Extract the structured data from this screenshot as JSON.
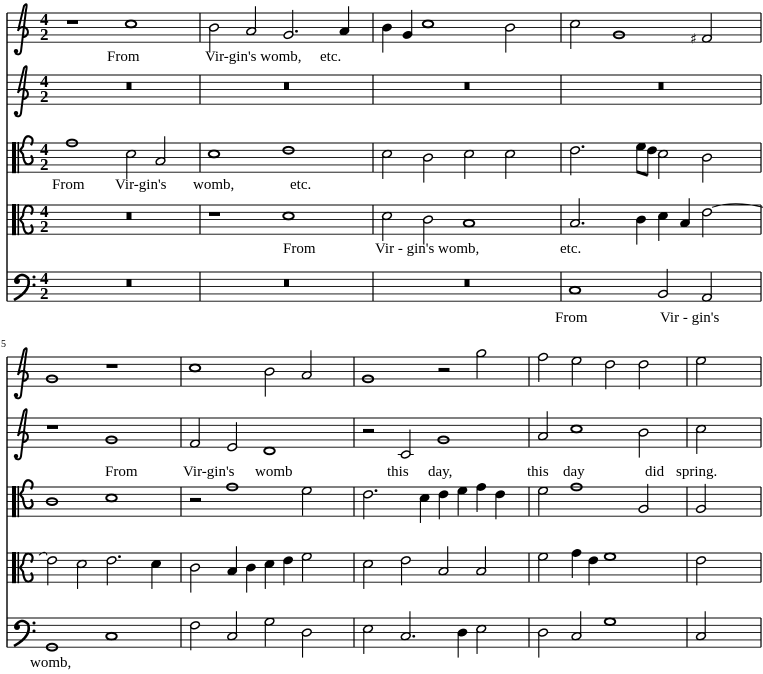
{
  "score": {
    "time_signature": {
      "numerator": "4",
      "denominator": "2"
    },
    "measure_number": "5",
    "colors": {
      "ink": "#000000",
      "paper": "#ffffff"
    },
    "systems": [
      {
        "staves": [
          {
            "clef": "treble",
            "measures": [
              [
                {
                  "r": "1"
                },
                {
                  "p": "C5",
                  "d": "1"
                }
              ],
              [
                {
                  "p": "B4",
                  "d": "2"
                },
                {
                  "p": "A4",
                  "d": "2"
                },
                {
                  "p": "G4",
                  "d": "2."
                },
                {
                  "p": "A4",
                  "d": "4"
                }
              ],
              [
                {
                  "p": "B4",
                  "d": "4"
                },
                {
                  "p": "G4",
                  "d": "4"
                },
                {
                  "p": "C5",
                  "d": "1"
                },
                {
                  "p": "B4",
                  "d": "2"
                }
              ],
              [
                {
                  "p": "C5",
                  "d": "2"
                },
                {
                  "p": "G4",
                  "d": "1"
                },
                {
                  "p": "F4",
                  "d": "2",
                  "acc": "#"
                }
              ]
            ]
          },
          {
            "clef": "treble",
            "measures": [
              [
                {
                  "r": "B"
                }
              ],
              [
                {
                  "r": "B"
                }
              ],
              [
                {
                  "r": "B"
                }
              ],
              [
                {
                  "r": "B"
                }
              ]
            ]
          },
          {
            "clef": "tenor",
            "measures": [
              [
                {
                  "p": "E4",
                  "d": "1"
                },
                {
                  "p": "B3",
                  "d": "2"
                },
                {
                  "p": "G3",
                  "d": "2"
                }
              ],
              [
                {
                  "p": "B3",
                  "d": "1"
                },
                {
                  "p": "C4",
                  "d": "1"
                }
              ],
              [
                {
                  "p": "B3",
                  "d": "2"
                },
                {
                  "p": "A3",
                  "d": "2"
                },
                {
                  "p": "B3",
                  "d": "2"
                },
                {
                  "p": "B3",
                  "d": "2"
                }
              ],
              [
                {
                  "p": "C4",
                  "d": "2."
                },
                {
                  "p": "D4",
                  "d": "8"
                },
                {
                  "p": "C4",
                  "d": "8"
                },
                {
                  "p": "B3",
                  "d": "2"
                },
                {
                  "p": "A3",
                  "d": "2"
                }
              ]
            ]
          },
          {
            "clef": "alto",
            "measures": [
              [
                {
                  "r": "B"
                }
              ],
              [
                {
                  "r": "1"
                },
                {
                  "p": "D4",
                  "d": "1"
                }
              ],
              [
                {
                  "p": "D4",
                  "d": "2"
                },
                {
                  "p": "C4",
                  "d": "2"
                },
                {
                  "p": "B3",
                  "d": "1"
                }
              ],
              [
                {
                  "p": "B3",
                  "d": "2."
                },
                {
                  "p": "C4",
                  "d": "4"
                },
                {
                  "p": "D4",
                  "d": "4"
                },
                {
                  "p": "B3",
                  "d": "4"
                },
                {
                  "p": "E4",
                  "d": "2",
                  "tie": true
                }
              ]
            ]
          },
          {
            "clef": "bass",
            "measures": [
              [
                {
                  "r": "B"
                }
              ],
              [
                {
                  "r": "B"
                }
              ],
              [
                {
                  "r": "B"
                }
              ],
              [
                {
                  "p": "C3",
                  "d": "1"
                },
                {
                  "p": "B2",
                  "d": "2"
                },
                {
                  "p": "A2",
                  "d": "2"
                }
              ]
            ]
          }
        ]
      },
      {
        "staves": [
          {
            "clef": "treble",
            "measures": [
              [
                {
                  "p": "G4",
                  "d": "1"
                },
                {
                  "r": "1"
                }
              ],
              [
                {
                  "p": "C5",
                  "d": "1"
                },
                {
                  "p": "B4",
                  "d": "2"
                },
                {
                  "p": "A4",
                  "d": "2"
                }
              ],
              [
                {
                  "p": "G4",
                  "d": "1"
                },
                {
                  "r": "2"
                },
                {
                  "p": "G5",
                  "d": "2"
                }
              ],
              [
                {
                  "p": "F5",
                  "d": "2"
                },
                {
                  "p": "E5",
                  "d": "2"
                },
                {
                  "p": "D5",
                  "d": "2"
                },
                {
                  "p": "D5",
                  "d": "2"
                }
              ],
              [
                {
                  "p": "E5",
                  "d": "2"
                }
              ]
            ]
          },
          {
            "clef": "treble",
            "measures": [
              [
                {
                  "r": "1"
                },
                {
                  "p": "G4",
                  "d": "1"
                }
              ],
              [
                {
                  "p": "F4",
                  "d": "2"
                },
                {
                  "p": "E4",
                  "d": "2"
                },
                {
                  "p": "D4",
                  "d": "1"
                }
              ],
              [
                {
                  "r": "2"
                },
                {
                  "p": "C4",
                  "d": "2"
                },
                {
                  "p": "G4",
                  "d": "1"
                }
              ],
              [
                {
                  "p": "A4",
                  "d": "2"
                },
                {
                  "p": "C5",
                  "d": "1"
                },
                {
                  "p": "B4",
                  "d": "2"
                }
              ],
              [
                {
                  "p": "C5",
                  "d": "2"
                }
              ]
            ]
          },
          {
            "clef": "tenor",
            "measures": [
              [
                {
                  "p": "A3",
                  "d": "1"
                },
                {
                  "p": "B3",
                  "d": "1"
                }
              ],
              [
                {
                  "r": "2"
                },
                {
                  "p": "E4",
                  "d": "1"
                },
                {
                  "p": "D4",
                  "d": "2"
                }
              ],
              [
                {
                  "p": "C4",
                  "d": "2."
                },
                {
                  "p": "B3",
                  "d": "4"
                },
                {
                  "p": "C4",
                  "d": "4"
                },
                {
                  "p": "D4",
                  "d": "4"
                },
                {
                  "p": "E4",
                  "d": "4"
                },
                {
                  "p": "C4",
                  "d": "4"
                }
              ],
              [
                {
                  "p": "D4",
                  "d": "2"
                },
                {
                  "p": "E4",
                  "d": "1"
                },
                {
                  "p": "F3",
                  "d": "2"
                }
              ],
              [
                {
                  "p": "F3",
                  "d": "2"
                }
              ]
            ]
          },
          {
            "clef": "alto",
            "measures": [
              [
                {
                  "p": "E4",
                  "d": "2",
                  "tie_from": true
                },
                {
                  "p": "D4",
                  "d": "2"
                },
                {
                  "p": "E4",
                  "d": "2."
                },
                {
                  "p": "D4",
                  "d": "4"
                }
              ],
              [
                {
                  "p": "C4",
                  "d": "2"
                },
                {
                  "p": "B3",
                  "d": "4"
                },
                {
                  "p": "C4",
                  "d": "4"
                },
                {
                  "p": "D4",
                  "d": "4"
                },
                {
                  "p": "E4",
                  "d": "4"
                },
                {
                  "p": "F4",
                  "d": "2"
                }
              ],
              [
                {
                  "p": "D4",
                  "d": "2"
                },
                {
                  "p": "E4",
                  "d": "2"
                },
                {
                  "p": "B3",
                  "d": "2"
                },
                {
                  "p": "B3",
                  "d": "2"
                }
              ],
              [
                {
                  "p": "F4",
                  "d": "2"
                },
                {
                  "p": "G4",
                  "d": "4"
                },
                {
                  "p": "E4",
                  "d": "4"
                },
                {
                  "p": "F4",
                  "d": "1"
                }
              ],
              [
                {
                  "p": "E4",
                  "d": "2"
                }
              ]
            ]
          },
          {
            "clef": "bass",
            "measures": [
              [
                {
                  "p": "G2",
                  "d": "1"
                },
                {
                  "p": "C3",
                  "d": "1"
                }
              ],
              [
                {
                  "p": "F3",
                  "d": "2"
                },
                {
                  "p": "C3",
                  "d": "2"
                },
                {
                  "p": "G3",
                  "d": "2"
                },
                {
                  "p": "D3",
                  "d": "2"
                }
              ],
              [
                {
                  "p": "E3",
                  "d": "2"
                },
                {
                  "p": "C3",
                  "d": "2."
                },
                {
                  "p": "D3",
                  "d": "4"
                },
                {
                  "p": "E3",
                  "d": "2"
                }
              ],
              [
                {
                  "p": "D3",
                  "d": "2"
                },
                {
                  "p": "C3",
                  "d": "2"
                },
                {
                  "p": "G3",
                  "d": "1"
                }
              ],
              [
                {
                  "p": "C3",
                  "d": "2"
                }
              ]
            ]
          }
        ]
      }
    ]
  },
  "lyrics": {
    "system1_staff1": [
      "From",
      "Vir-gin's womb,",
      "etc."
    ],
    "system1_staff3": [
      "From",
      "Vir-gin's",
      "womb,",
      "etc."
    ],
    "system1_staff4": [
      "From",
      "Vir - gin's womb,",
      "etc."
    ],
    "system1_staff5": [
      "From",
      "Vir - gin's"
    ],
    "system2_staff2": [
      "From",
      "Vir-gin's",
      "womb",
      "this",
      "day,",
      "this",
      "day",
      "did",
      "spring."
    ],
    "system2_staff5": [
      "womb,"
    ]
  }
}
